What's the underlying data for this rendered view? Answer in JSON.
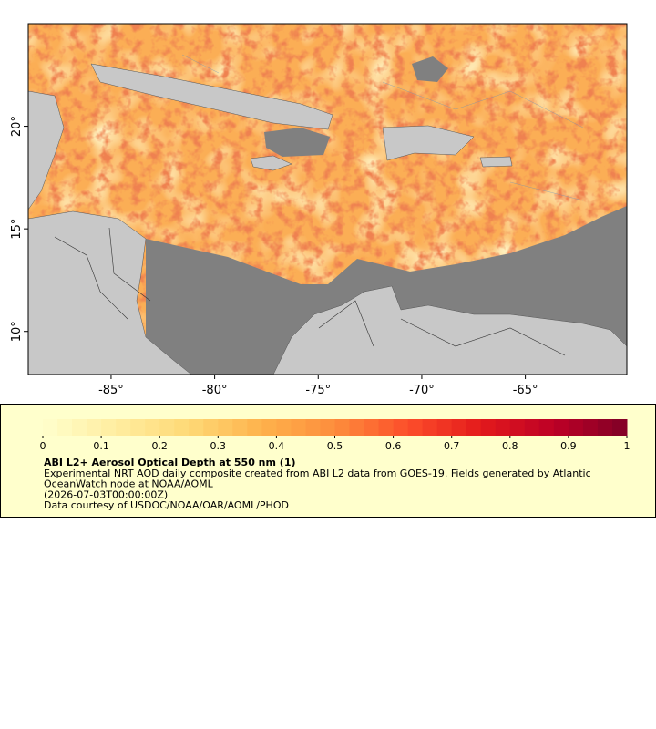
{
  "map": {
    "xlim": [
      -89,
      -60.1
    ],
    "ylim": [
      7.9,
      25
    ],
    "xticks": [
      {
        "value": -85,
        "label": "-85°"
      },
      {
        "value": -80,
        "label": "-80°"
      },
      {
        "value": -75,
        "label": "-75°"
      },
      {
        "value": -70,
        "label": "-70°"
      },
      {
        "value": -65,
        "label": "-65°"
      }
    ],
    "yticks": [
      {
        "value": 10,
        "label": "10°"
      },
      {
        "value": 15,
        "label": "15°"
      },
      {
        "value": 20,
        "label": "20°"
      }
    ]
  },
  "legend": {
    "range": [
      0,
      1
    ],
    "ticks": [
      0,
      0.1,
      0.2,
      0.3,
      0.4,
      0.5,
      0.6,
      0.7,
      0.8,
      0.9,
      1
    ],
    "palette": [
      "#ffffcc",
      "#ffeda0",
      "#fed976",
      "#feb24c",
      "#fd8d3c",
      "#fc4e2a",
      "#e31a1c",
      "#bd0026",
      "#800026"
    ],
    "title": "ABI L2+ Aerosol Optical Depth at 550 nm (1)",
    "lines": [
      "Experimental NRT AOD daily composite created from ABI L2 data from GOES-19. Fields generated by Atlantic",
      "OceanWatch node at NOAA/AOML",
      "(2026-07-03T00:00:00Z)",
      "Data courtesy of USDOC/NOAA/OAR/AOML/PHOD"
    ]
  }
}
